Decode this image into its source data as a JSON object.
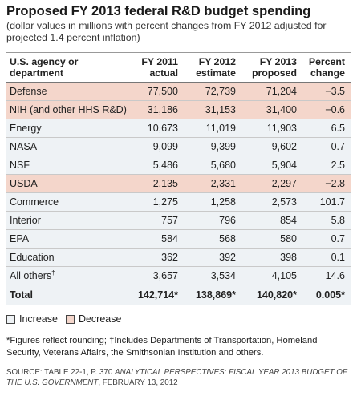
{
  "title": "Proposed FY 2013 federal R&D budget spending",
  "subtitle": "(dollar values in millions with percent changes from FY 2012 adjusted for projected 1.4 percent inflation)",
  "colors": {
    "increase": "#eef2f5",
    "decrease": "#f4d6cb"
  },
  "table": {
    "headers": {
      "agency": [
        "U.S. agency or",
        "department"
      ],
      "fy2011": [
        "FY 2011",
        "actual"
      ],
      "fy2012": [
        "FY 2012",
        "estimate"
      ],
      "fy2013": [
        "FY 2013",
        "proposed"
      ],
      "change": [
        "Percent",
        "change"
      ]
    },
    "rows": [
      {
        "agency": "Defense",
        "fy2011": "77,500",
        "fy2012": "72,739",
        "fy2013": "71,204",
        "change": "−3.5",
        "status": "decrease"
      },
      {
        "agency": "NIH (and other HHS R&D)",
        "fy2011": "31,186",
        "fy2012": "31,153",
        "fy2013": "31,400",
        "change": "−0.6",
        "status": "decrease"
      },
      {
        "agency": "Energy",
        "fy2011": "10,673",
        "fy2012": "11,019",
        "fy2013": "11,903",
        "change": "6.5",
        "status": "increase"
      },
      {
        "agency": "NASA",
        "fy2011": "9,099",
        "fy2012": "9,399",
        "fy2013": "9,602",
        "change": "0.7",
        "status": "increase"
      },
      {
        "agency": "NSF",
        "fy2011": "5,486",
        "fy2012": "5,680",
        "fy2013": "5,904",
        "change": "2.5",
        "status": "increase"
      },
      {
        "agency": "USDA",
        "fy2011": "2,135",
        "fy2012": "2,331",
        "fy2013": "2,297",
        "change": "−2.8",
        "status": "decrease"
      },
      {
        "agency": "Commerce",
        "fy2011": "1,275",
        "fy2012": "1,258",
        "fy2013": "2,573",
        "change": "101.7",
        "status": "increase"
      },
      {
        "agency": "Interior",
        "fy2011": "757",
        "fy2012": "796",
        "fy2013": "854",
        "change": "5.8",
        "status": "increase"
      },
      {
        "agency": "EPA",
        "fy2011": "584",
        "fy2012": "568",
        "fy2013": "580",
        "change": "0.7",
        "status": "increase"
      },
      {
        "agency": "Education",
        "fy2011": "362",
        "fy2012": "392",
        "fy2013": "398",
        "change": "0.1",
        "status": "increase"
      },
      {
        "agency": "All others",
        "agency_mark": "†",
        "fy2011": "3,657",
        "fy2012": "3,534",
        "fy2013": "4,105",
        "change": "14.6",
        "status": "increase"
      }
    ],
    "total": {
      "agency": "Total",
      "fy2011": "142,714*",
      "fy2012": "138,869*",
      "fy2013": "140,820*",
      "change": "0.005*"
    }
  },
  "legend": {
    "increase": "Increase",
    "decrease": "Decrease"
  },
  "footnote": "*Figures reflect rounding; †Includes Departments of Transportation, Homeland Security, Veterans Affairs, the Smithsonian Institution and others.",
  "source": {
    "prefix": "SOURCE: TABLE 22-1, P. 370 ",
    "publication": "ANALYTICAL PERSPECTIVES: FISCAL YEAR 2013 BUDGET OF THE U.S. GOVERNMENT",
    "suffix": ", FEBRUARY 13, 2012"
  }
}
